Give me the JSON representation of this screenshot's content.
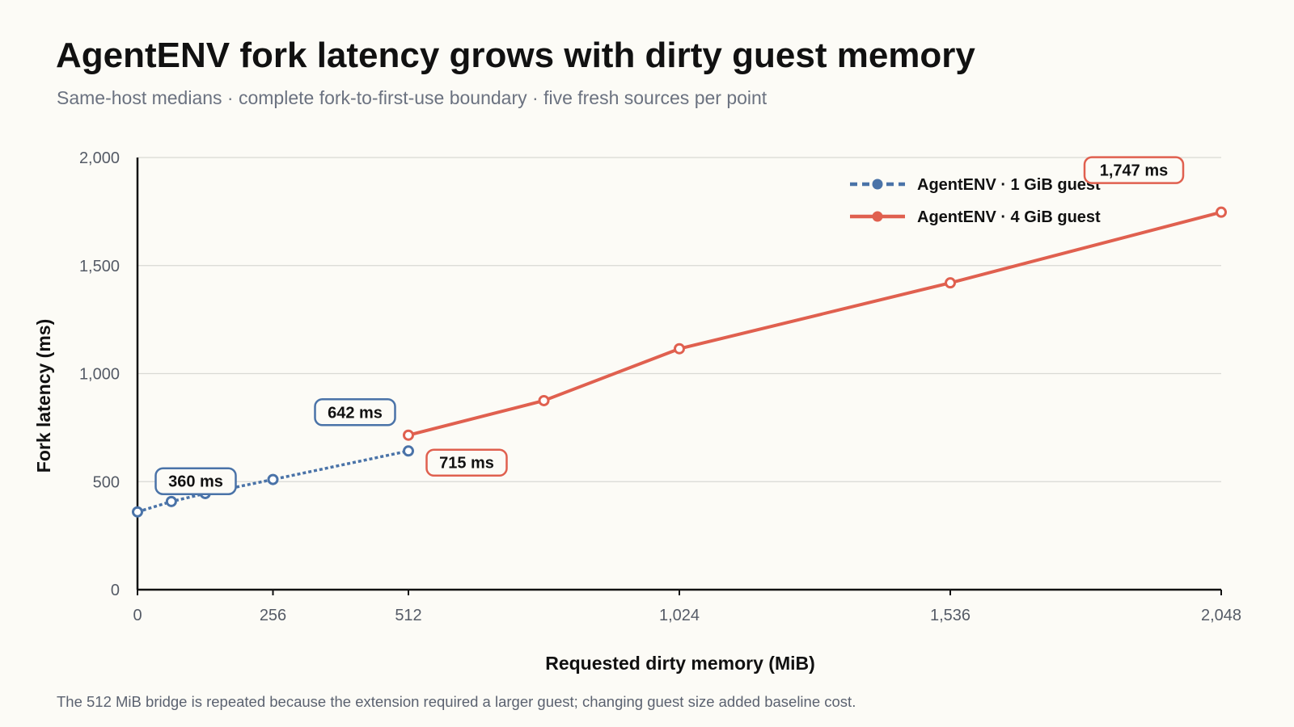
{
  "chart_data": {
    "type": "line",
    "title": "AgentENV fork latency grows with dirty guest memory",
    "subtitle": "Same-host medians · complete fork-to-first-use boundary · five fresh sources per point",
    "xlabel": "Requested dirty memory (MiB)",
    "ylabel": "Fork latency (ms)",
    "xlim": [
      0,
      2048
    ],
    "ylim": [
      0,
      2000
    ],
    "x_ticks": [
      0,
      256,
      512,
      1024,
      1536,
      2048
    ],
    "x_tick_labels": [
      "0",
      "256",
      "512",
      "1,024",
      "1,536",
      "2,048"
    ],
    "y_ticks": [
      0,
      500,
      1000,
      1500,
      2000
    ],
    "y_tick_labels": [
      "0",
      "500",
      "1,000",
      "1,500",
      "2,000"
    ],
    "grid": "horizontal",
    "legend_position": "top-right",
    "series": [
      {
        "name": "AgentENV · 1 GiB guest",
        "color": "#4a73a8",
        "style": "dashed",
        "x": [
          0,
          64,
          128,
          256,
          512
        ],
        "y": [
          360,
          408,
          445,
          510,
          642
        ]
      },
      {
        "name": "AgentENV · 4 GiB guest",
        "color": "#e0604f",
        "style": "solid",
        "x": [
          512,
          768,
          1024,
          1536,
          2048
        ],
        "y": [
          715,
          875,
          1115,
          1420,
          1747
        ]
      }
    ],
    "annotations": [
      {
        "series": 0,
        "x": 0,
        "y": 360,
        "text": "360 ms"
      },
      {
        "series": 0,
        "x": 512,
        "y": 642,
        "text": "642 ms"
      },
      {
        "series": 1,
        "x": 512,
        "y": 715,
        "text": "715 ms"
      },
      {
        "series": 1,
        "x": 2048,
        "y": 1747,
        "text": "1,747 ms"
      }
    ],
    "footnote": "The 512 MiB bridge is repeated because the extension required a larger guest; changing guest size added baseline cost."
  }
}
